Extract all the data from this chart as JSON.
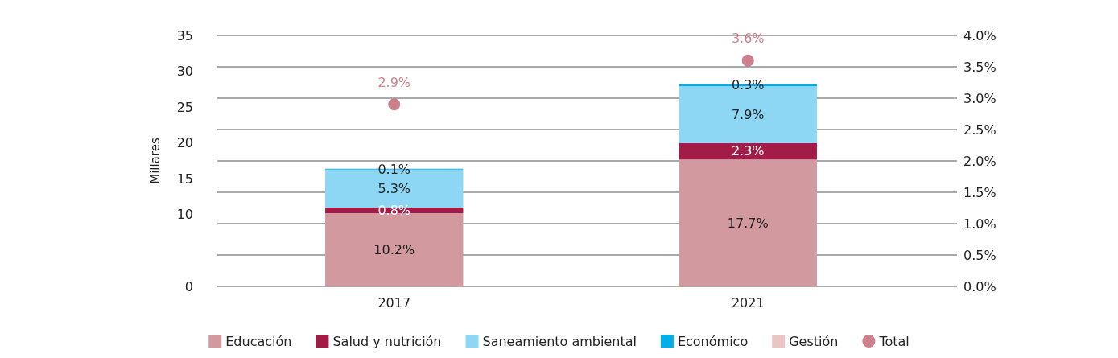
{
  "chart_data": {
    "type": "bar",
    "stacked": true,
    "ylabel": "Millares",
    "categories": [
      "2017",
      "2021"
    ],
    "series": [
      {
        "name": "Educación",
        "color": "#d29a9f",
        "values": [
          10.2,
          17.7
        ],
        "value_labels": [
          "10.2%",
          "17.7%"
        ]
      },
      {
        "name": "Salud y nutrición",
        "color": "#a31c47",
        "values": [
          0.8,
          2.3
        ],
        "value_labels": [
          "0.8%",
          "2.3%"
        ]
      },
      {
        "name": "Saneamiento ambiental",
        "color": "#8dd7f5",
        "values": [
          5.3,
          7.9
        ],
        "value_labels": [
          "5.3%",
          "7.9%"
        ]
      },
      {
        "name": "Económico",
        "color": "#00aee9",
        "values": [
          0.1,
          0.3
        ],
        "value_labels": [
          "0.1%",
          "0.3%"
        ]
      },
      {
        "name": "Gestión",
        "color": "#e9c6c5",
        "values": [
          null,
          null
        ]
      },
      {
        "name": "Total",
        "type": "scatter",
        "axis": "y2",
        "color": "#c0606e",
        "values": [
          2.9,
          3.6
        ],
        "value_labels": [
          "2.9%",
          "3.6%"
        ]
      }
    ],
    "ylim": [
      0,
      35
    ],
    "yticks": [
      0,
      10,
      15,
      20,
      25,
      30,
      35
    ],
    "y2lim": [
      0,
      4
    ],
    "y2ticks": [
      {
        "value": 0,
        "label": "0.0%"
      },
      {
        "value": 0.5,
        "label": "0.5%"
      },
      {
        "value": 1,
        "label": "1.0%"
      },
      {
        "value": 1.5,
        "label": "1.5%"
      },
      {
        "value": 2,
        "label": "2.0%"
      },
      {
        "value": 2.5,
        "label": "2.5%"
      },
      {
        "value": 3,
        "label": "3.0%"
      },
      {
        "value": 3.5,
        "label": "3.5%"
      },
      {
        "value": 4,
        "label": "4.0%"
      }
    ],
    "grid": true,
    "legend": "bottom",
    "marker": "circle"
  }
}
